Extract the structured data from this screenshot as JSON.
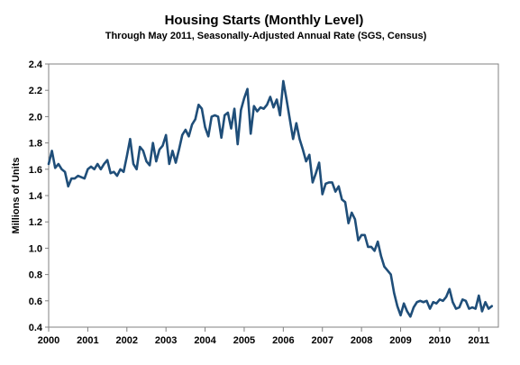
{
  "chart_data": {
    "type": "line",
    "title": "Housing Starts (Monthly Level)",
    "subtitle": "Through May 2011, Seasonally-Adjusted Annual Rate (SGS, Census)",
    "xlabel": "",
    "ylabel": "Millions of Units",
    "ylim": [
      0.4,
      2.4
    ],
    "xlim": [
      2000,
      2011.5
    ],
    "y_ticks": [
      "0.4",
      "0.6",
      "0.8",
      "1.0",
      "1.2",
      "1.4",
      "1.6",
      "1.8",
      "2.0",
      "2.2",
      "2.4"
    ],
    "x_ticks": [
      "2000",
      "2001",
      "2002",
      "2003",
      "2004",
      "2005",
      "2006",
      "2007",
      "2008",
      "2009",
      "2010",
      "2011"
    ],
    "grid": false,
    "legend": "none",
    "series": [
      {
        "color": "#1f4e79",
        "start": "2000-01",
        "end": "2011-05",
        "frequency": "monthly",
        "values": [
          1.64,
          1.74,
          1.61,
          1.64,
          1.6,
          1.58,
          1.47,
          1.53,
          1.53,
          1.55,
          1.54,
          1.53,
          1.6,
          1.62,
          1.6,
          1.64,
          1.6,
          1.64,
          1.67,
          1.57,
          1.58,
          1.55,
          1.6,
          1.58,
          1.7,
          1.83,
          1.64,
          1.6,
          1.77,
          1.74,
          1.66,
          1.63,
          1.8,
          1.66,
          1.75,
          1.78,
          1.86,
          1.64,
          1.74,
          1.65,
          1.75,
          1.86,
          1.9,
          1.85,
          1.94,
          1.98,
          2.09,
          2.06,
          1.92,
          1.85,
          2.0,
          2.01,
          2.0,
          1.84,
          2.01,
          2.03,
          1.91,
          2.06,
          1.79,
          2.05,
          2.14,
          2.21,
          1.87,
          2.08,
          2.04,
          2.07,
          2.06,
          2.09,
          2.15,
          2.07,
          2.13,
          2.01,
          2.27,
          2.13,
          1.98,
          1.83,
          1.95,
          1.83,
          1.75,
          1.66,
          1.71,
          1.5,
          1.57,
          1.65,
          1.41,
          1.49,
          1.5,
          1.5,
          1.43,
          1.47,
          1.37,
          1.35,
          1.19,
          1.27,
          1.22,
          1.06,
          1.1,
          1.1,
          1.01,
          1.01,
          0.98,
          1.05,
          0.94,
          0.86,
          0.83,
          0.8,
          0.66,
          0.56,
          0.49,
          0.58,
          0.52,
          0.48,
          0.55,
          0.59,
          0.6,
          0.59,
          0.6,
          0.54,
          0.59,
          0.58,
          0.61,
          0.6,
          0.63,
          0.69,
          0.59,
          0.54,
          0.55,
          0.61,
          0.6,
          0.54,
          0.55,
          0.54,
          0.64,
          0.52,
          0.59,
          0.54,
          0.56
        ]
      }
    ]
  }
}
